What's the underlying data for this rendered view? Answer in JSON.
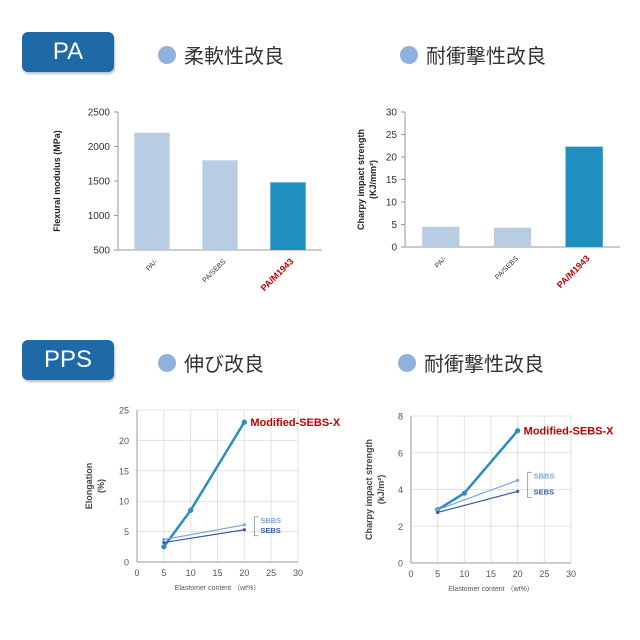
{
  "sections": {
    "pa": {
      "badge": "PA",
      "heading_left": "柔軟性改良",
      "heading_right": "耐衝撃性改良"
    },
    "pps": {
      "badge": "PPS",
      "heading_left": "伸び改良",
      "heading_right": "耐衝撃性改良"
    }
  },
  "colors": {
    "badge": "#1e6aa6",
    "bar_light": "#b8cce4",
    "bar_dark": "#1f8fbf",
    "highlight_label": "#c00000",
    "dot": "#8fb1dd",
    "line_dark": "#2b8cc0",
    "line_sbbs": "#7ea6d6",
    "line_sebs": "#3b5ba8"
  },
  "chart_data": [
    {
      "type": "bar",
      "categories": [
        "PA/-",
        "PA/SEBS",
        "PA/M1943"
      ],
      "values": [
        2200,
        1800,
        1480
      ],
      "highlight": [
        false,
        false,
        true
      ],
      "ylabel": "Flexural modulus (MPa)",
      "ylim": [
        500,
        2500
      ],
      "yticks": [
        "500",
        "1000",
        "1500",
        "2000",
        "2500"
      ],
      "ytick_values": [
        500,
        1000,
        1500,
        2000,
        2500
      ]
    },
    {
      "type": "bar",
      "categories": [
        "PA/-",
        "PA/SEBS",
        "PA/M1943"
      ],
      "values": [
        4.5,
        4.3,
        22.3
      ],
      "highlight": [
        false,
        false,
        true
      ],
      "ylabel": "Charpy impact strength",
      "ylabel2": "(KJ/mm²)",
      "ylim": [
        0,
        30
      ],
      "yticks": [
        "0",
        "5",
        "10",
        "15",
        "20",
        "25",
        "30"
      ],
      "ytick_values": [
        0,
        5,
        10,
        15,
        20,
        25,
        30
      ]
    },
    {
      "type": "line",
      "xlabel": "Elastomer content （wt%）",
      "ylabel": "Elongation",
      "ylabel2": "(%)",
      "xlim": [
        0,
        30
      ],
      "ylim": [
        0,
        25
      ],
      "xticks": [
        "0",
        "5",
        "10",
        "15",
        "20",
        "25",
        "30"
      ],
      "xtick_values": [
        0,
        5,
        10,
        15,
        20,
        25,
        30
      ],
      "yticks": [
        "0",
        "5",
        "10",
        "15",
        "20",
        "25"
      ],
      "ytick_values": [
        0,
        5,
        10,
        15,
        20,
        25
      ],
      "series": [
        {
          "name": "Modified-SEBS-X",
          "x": [
            5,
            10,
            20
          ],
          "y": [
            2.5,
            8.5,
            23
          ],
          "color": "#2b8cc0",
          "labelColor": "#c00000",
          "width": 2.5
        },
        {
          "name": "SBBS",
          "x": [
            5,
            20
          ],
          "y": [
            3.7,
            6.1
          ],
          "color": "#7ea6d6",
          "labelColor": "#7ea6d6",
          "width": 1.2
        },
        {
          "name": "SEBS",
          "x": [
            5,
            20
          ],
          "y": [
            3.2,
            5.3
          ],
          "color": "#3b5ba8",
          "labelColor": "#3b5ba8",
          "width": 1.2
        }
      ]
    },
    {
      "type": "line",
      "xlabel": "Elastomer content （wt%）",
      "ylabel": "Charpy impact strength",
      "ylabel2": "(kJ/m²)",
      "xlim": [
        0,
        30
      ],
      "ylim": [
        0,
        8
      ],
      "xticks": [
        "0",
        "5",
        "10",
        "15",
        "20",
        "25",
        "30"
      ],
      "xtick_values": [
        0,
        5,
        10,
        15,
        20,
        25,
        30
      ],
      "yticks": [
        "0",
        "2",
        "4",
        "6",
        "8"
      ],
      "ytick_values": [
        0,
        2,
        4,
        6,
        8
      ],
      "series": [
        {
          "name": "Modified-SEBS-X",
          "x": [
            5,
            10,
            20
          ],
          "y": [
            2.9,
            3.8,
            7.2
          ],
          "color": "#2b8cc0",
          "labelColor": "#c00000",
          "width": 2.5
        },
        {
          "name": "SBBS",
          "x": [
            5,
            20
          ],
          "y": [
            2.9,
            4.5
          ],
          "color": "#7ea6d6",
          "labelColor": "#7ea6d6",
          "width": 1.2
        },
        {
          "name": "SEBS",
          "x": [
            5,
            20
          ],
          "y": [
            2.75,
            3.9
          ],
          "color": "#3b5ba8",
          "labelColor": "#3b5ba8",
          "width": 1.2
        }
      ]
    }
  ]
}
